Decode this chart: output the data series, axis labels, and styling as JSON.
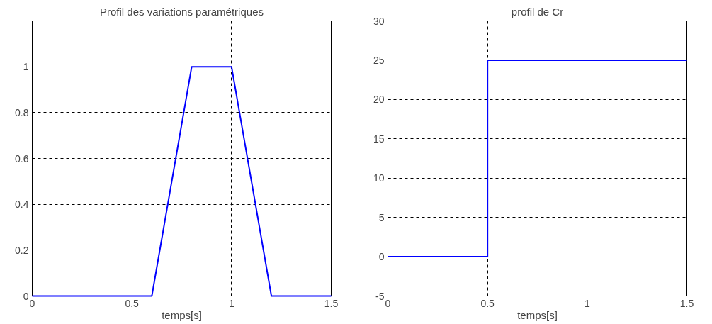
{
  "chart_data": [
    {
      "type": "line",
      "title": "Profil des variations paramétriques",
      "xlabel": "temps[s]",
      "x": [
        0,
        0.6,
        0.8,
        1,
        1.2,
        1.5
      ],
      "series": [
        {
          "color": "#0000ff",
          "values": [
            0,
            0,
            1,
            1,
            0,
            0
          ]
        }
      ],
      "xlim": [
        0,
        1.5
      ],
      "xticks": [
        0,
        0.5,
        1,
        1.5
      ],
      "ylim": [
        0,
        1.2
      ],
      "yticks": [
        0,
        0.2,
        0.4,
        0.6,
        0.8,
        1
      ],
      "grid": true,
      "line_style": "solid"
    },
    {
      "type": "line",
      "title": "profil de Cr",
      "xlabel": "temps[s]",
      "x": [
        0,
        0.5,
        0.5,
        1.5
      ],
      "series": [
        {
          "color": "#0000ff",
          "values": [
            0,
            0,
            25,
            25
          ]
        }
      ],
      "xlim": [
        0,
        1.5
      ],
      "xticks": [
        0,
        0.5,
        1,
        1.5
      ],
      "ylim": [
        -5,
        30
      ],
      "yticks": [
        -5,
        0,
        5,
        10,
        15,
        20,
        25,
        30
      ],
      "grid": true,
      "line_style": "solid"
    }
  ]
}
